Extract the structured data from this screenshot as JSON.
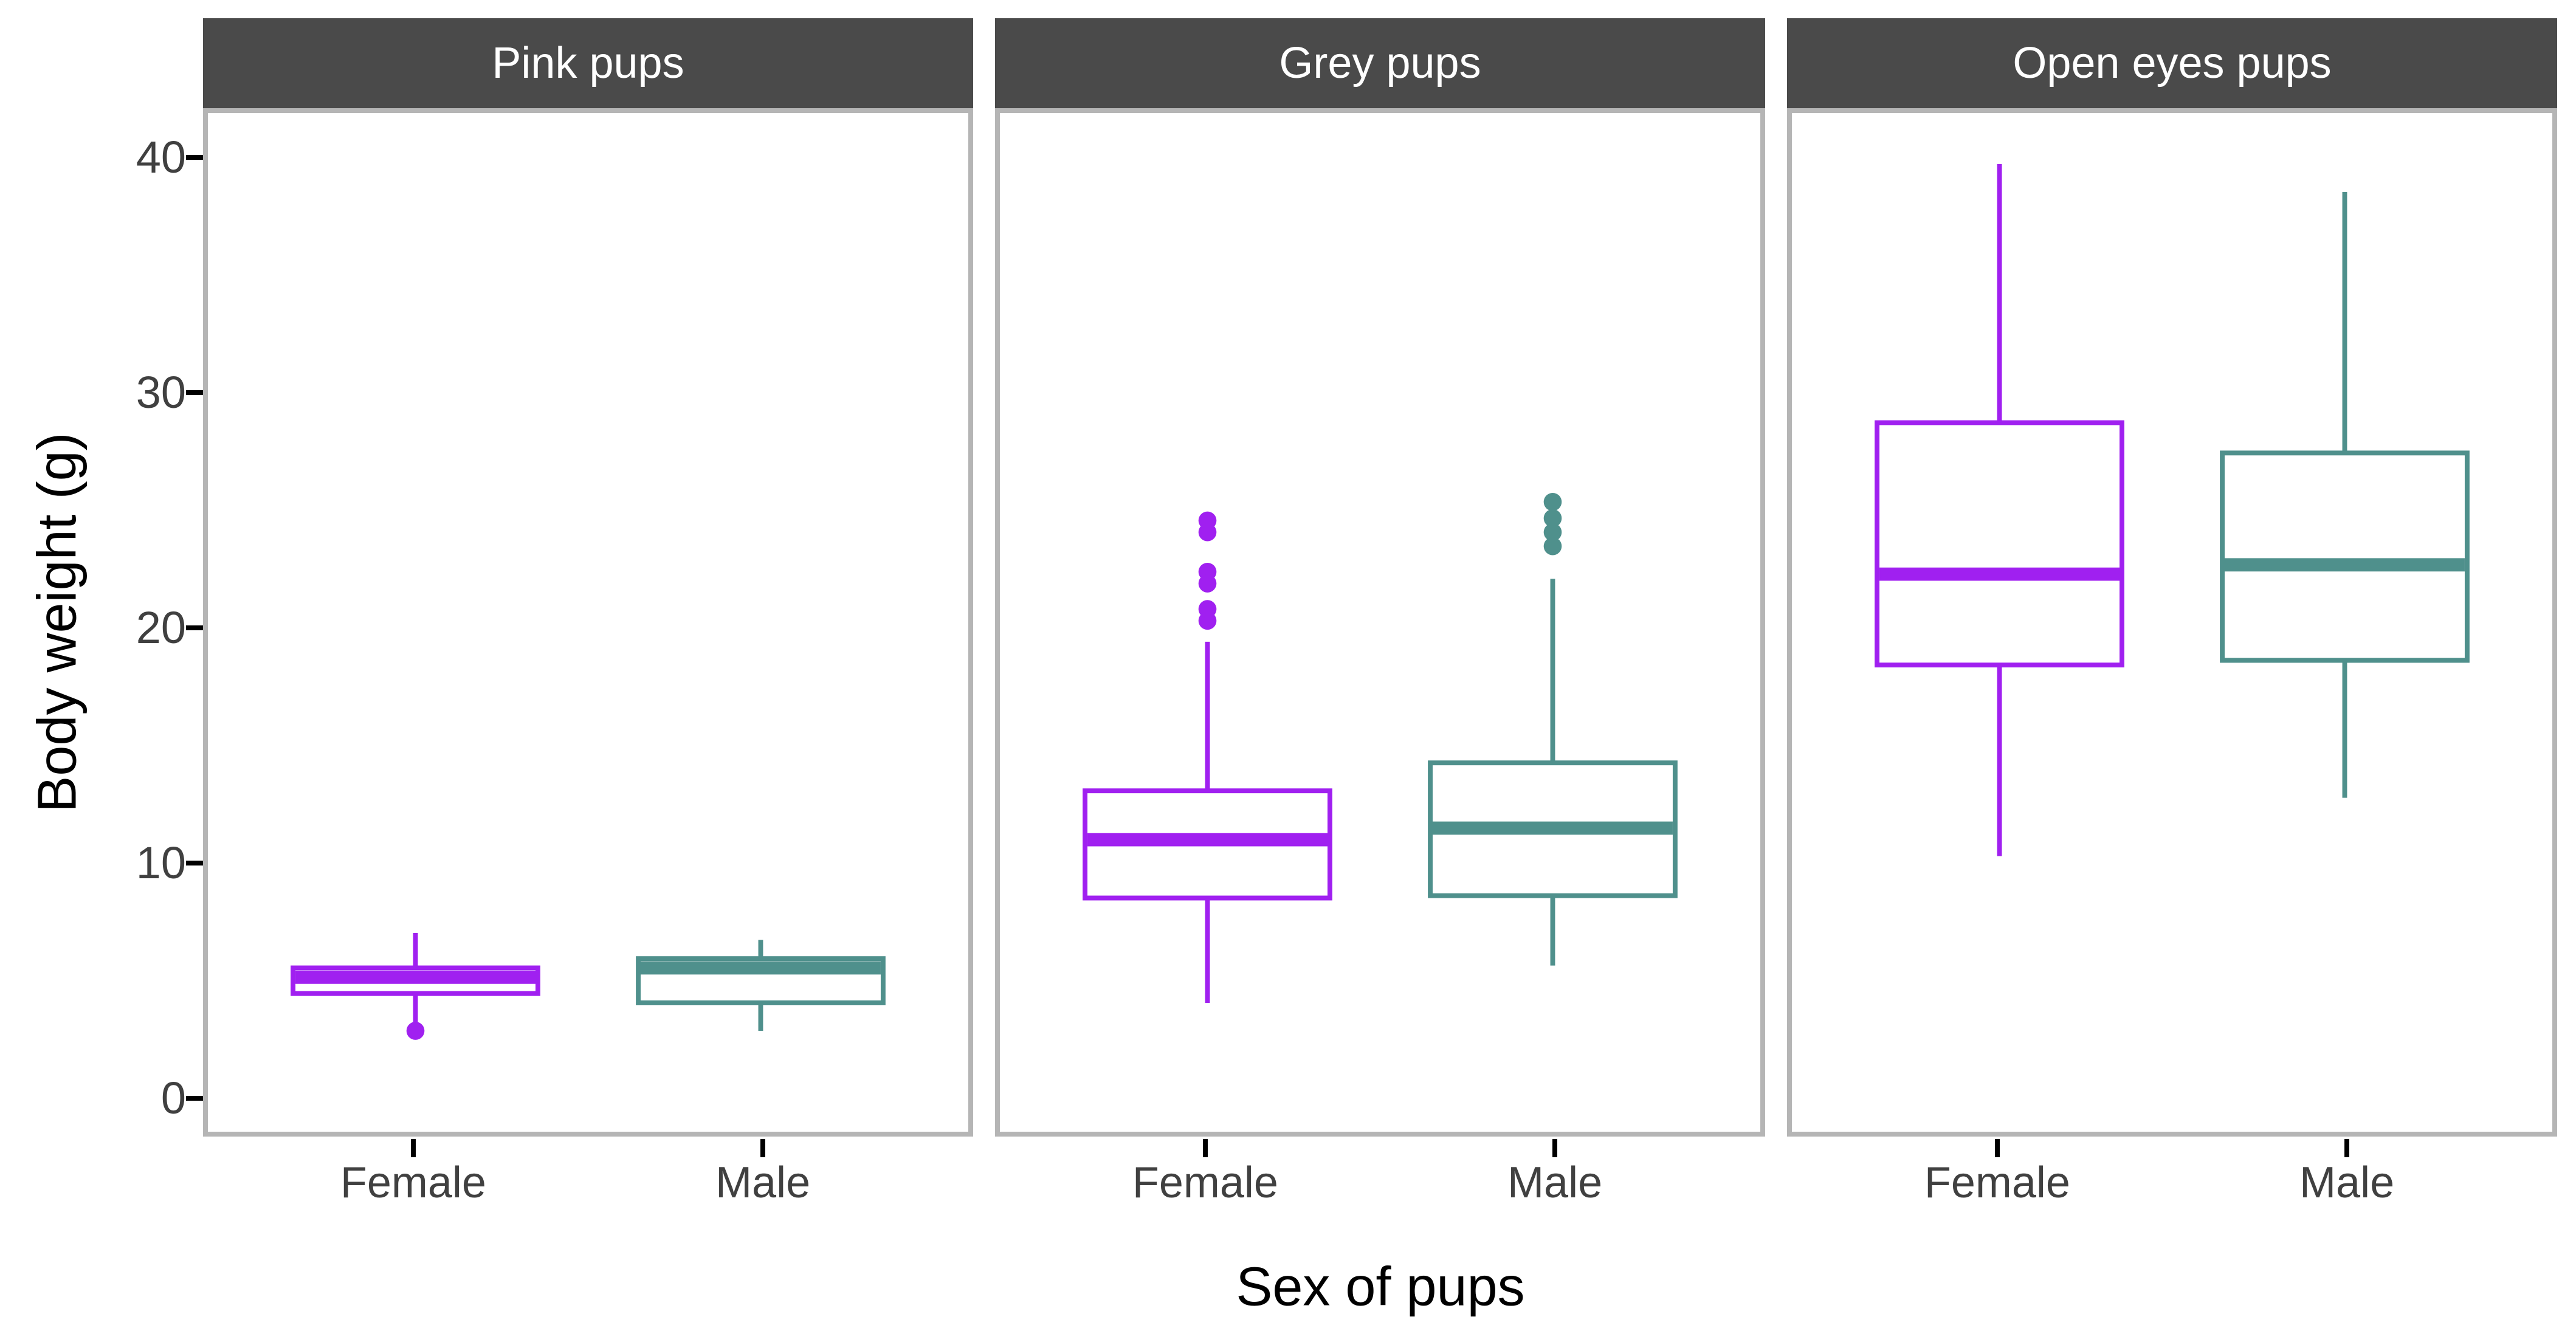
{
  "figure_title": "",
  "chart_data": {
    "type": "boxplot",
    "xlabel": "Sex of pups",
    "ylabel": "Body weight (g)",
    "categories": [
      "Female",
      "Male"
    ],
    "y_ticks": [
      0,
      10,
      20,
      30,
      40
    ],
    "ylim": [
      -1.63,
      42.09
    ],
    "grid": "off",
    "legend": "none",
    "facets": [
      {
        "label": "Pink pups",
        "boxes": [
          {
            "category": "Female",
            "min": 3.0,
            "q1": 4.3,
            "median": 5.0,
            "q3": 5.4,
            "max": 6.9,
            "outliers": [
              2.7
            ]
          },
          {
            "category": "Male",
            "min": 2.7,
            "q1": 3.9,
            "median": 5.4,
            "q3": 5.8,
            "max": 6.6,
            "outliers": []
          }
        ]
      },
      {
        "label": "Grey pups",
        "boxes": [
          {
            "category": "Female",
            "min": 3.9,
            "q1": 8.4,
            "median": 10.9,
            "q3": 13.0,
            "max": 19.4,
            "outliers": [
              24.6,
              24.1,
              22.4,
              21.9,
              20.8,
              20.3
            ]
          },
          {
            "category": "Male",
            "min": 5.5,
            "q1": 8.5,
            "median": 11.4,
            "q3": 14.2,
            "max": 22.1,
            "outliers": [
              25.4,
              24.7,
              24.1,
              23.5
            ]
          }
        ]
      },
      {
        "label": "Open eyes pups",
        "boxes": [
          {
            "category": "Female",
            "min": 10.2,
            "q1": 18.4,
            "median": 22.3,
            "q3": 28.8,
            "max": 39.9,
            "outliers": []
          },
          {
            "category": "Male",
            "min": 12.7,
            "q1": 18.6,
            "median": 22.7,
            "q3": 27.5,
            "max": 38.7,
            "outliers": []
          }
        ]
      }
    ]
  },
  "colors": {
    "female": "#A020F0",
    "male": "#4F908C",
    "strip_background": "#4A4A4A",
    "strip_text": "#FFFFFF",
    "axis_text": "#404040",
    "axis_title_text": "#000000",
    "panel_border": "#B5B5B5",
    "tick_mark": "#000000",
    "background": "#FFFFFF"
  }
}
